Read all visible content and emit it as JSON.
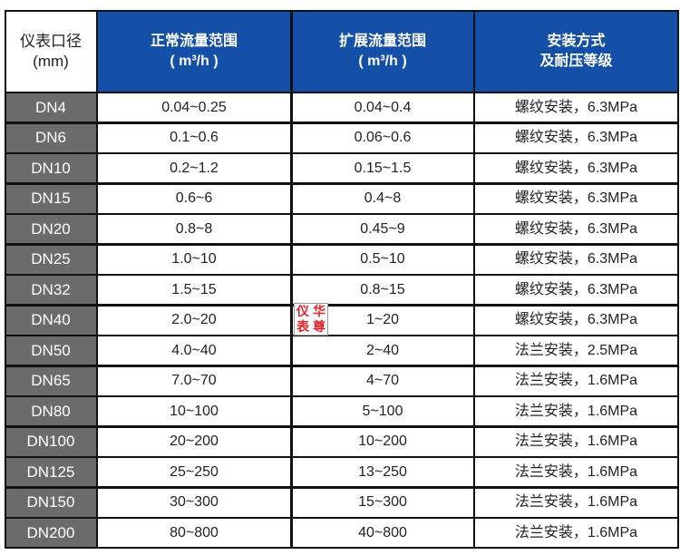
{
  "header": {
    "col1": [
      "仪表口径",
      "(mm)"
    ],
    "col2": [
      "正常流量范围",
      "( m³/h )"
    ],
    "col3": [
      "扩展流量范围",
      "( m³/h )"
    ],
    "col4": [
      "安装方式",
      "及耐压等级"
    ]
  },
  "rows": [
    [
      "DN4",
      "0.04~0.25",
      "0.04~0.4",
      "螺纹安装，6.3MPa"
    ],
    [
      "DN6",
      "0.1~0.6",
      "0.06~0.6",
      "螺纹安装，6.3MPa"
    ],
    [
      "DN10",
      "0.2~1.2",
      "0.15~1.5",
      "螺纹安装，6.3MPa"
    ],
    [
      "DN15",
      "0.6~6",
      "0.4~8",
      "螺纹安装，6.3MPa"
    ],
    [
      "DN20",
      "0.8~8",
      "0.45~9",
      "螺纹安装，6.3MPa"
    ],
    [
      "DN25",
      "1.0~10",
      "0.5~10",
      "螺纹安装，6.3MPa"
    ],
    [
      "DN32",
      "1.5~15",
      "0.8~15",
      "螺纹安装，6.3MPa"
    ],
    [
      "DN40",
      "2.0~20",
      "1~20",
      "螺纹安装，6.3MPa"
    ],
    [
      "DN50",
      "4.0~40",
      "2~40",
      "法兰安装，2.5MPa"
    ],
    [
      "DN65",
      "7.0~70",
      "4~70",
      "法兰安装，1.6MPa"
    ],
    [
      "DN80",
      "10~100",
      "5~100",
      "法兰安装，1.6MPa"
    ],
    [
      "DN100",
      "20~200",
      "10~200",
      "法兰安装，1.6MPa"
    ],
    [
      "DN125",
      "25~250",
      "13~250",
      "法兰安装，1.6MPa"
    ],
    [
      "DN150",
      "30~300",
      "15~300",
      "法兰安装，1.6MPa"
    ],
    [
      "DN200",
      "80~800",
      "40~800",
      "法兰安装，1.6MPa"
    ]
  ],
  "stamp": [
    "仪",
    "华",
    "表",
    "尊"
  ],
  "colors": {
    "header": "#1450a8",
    "dn_cell": "#6b6b6b",
    "stamp": "#e8202a"
  }
}
